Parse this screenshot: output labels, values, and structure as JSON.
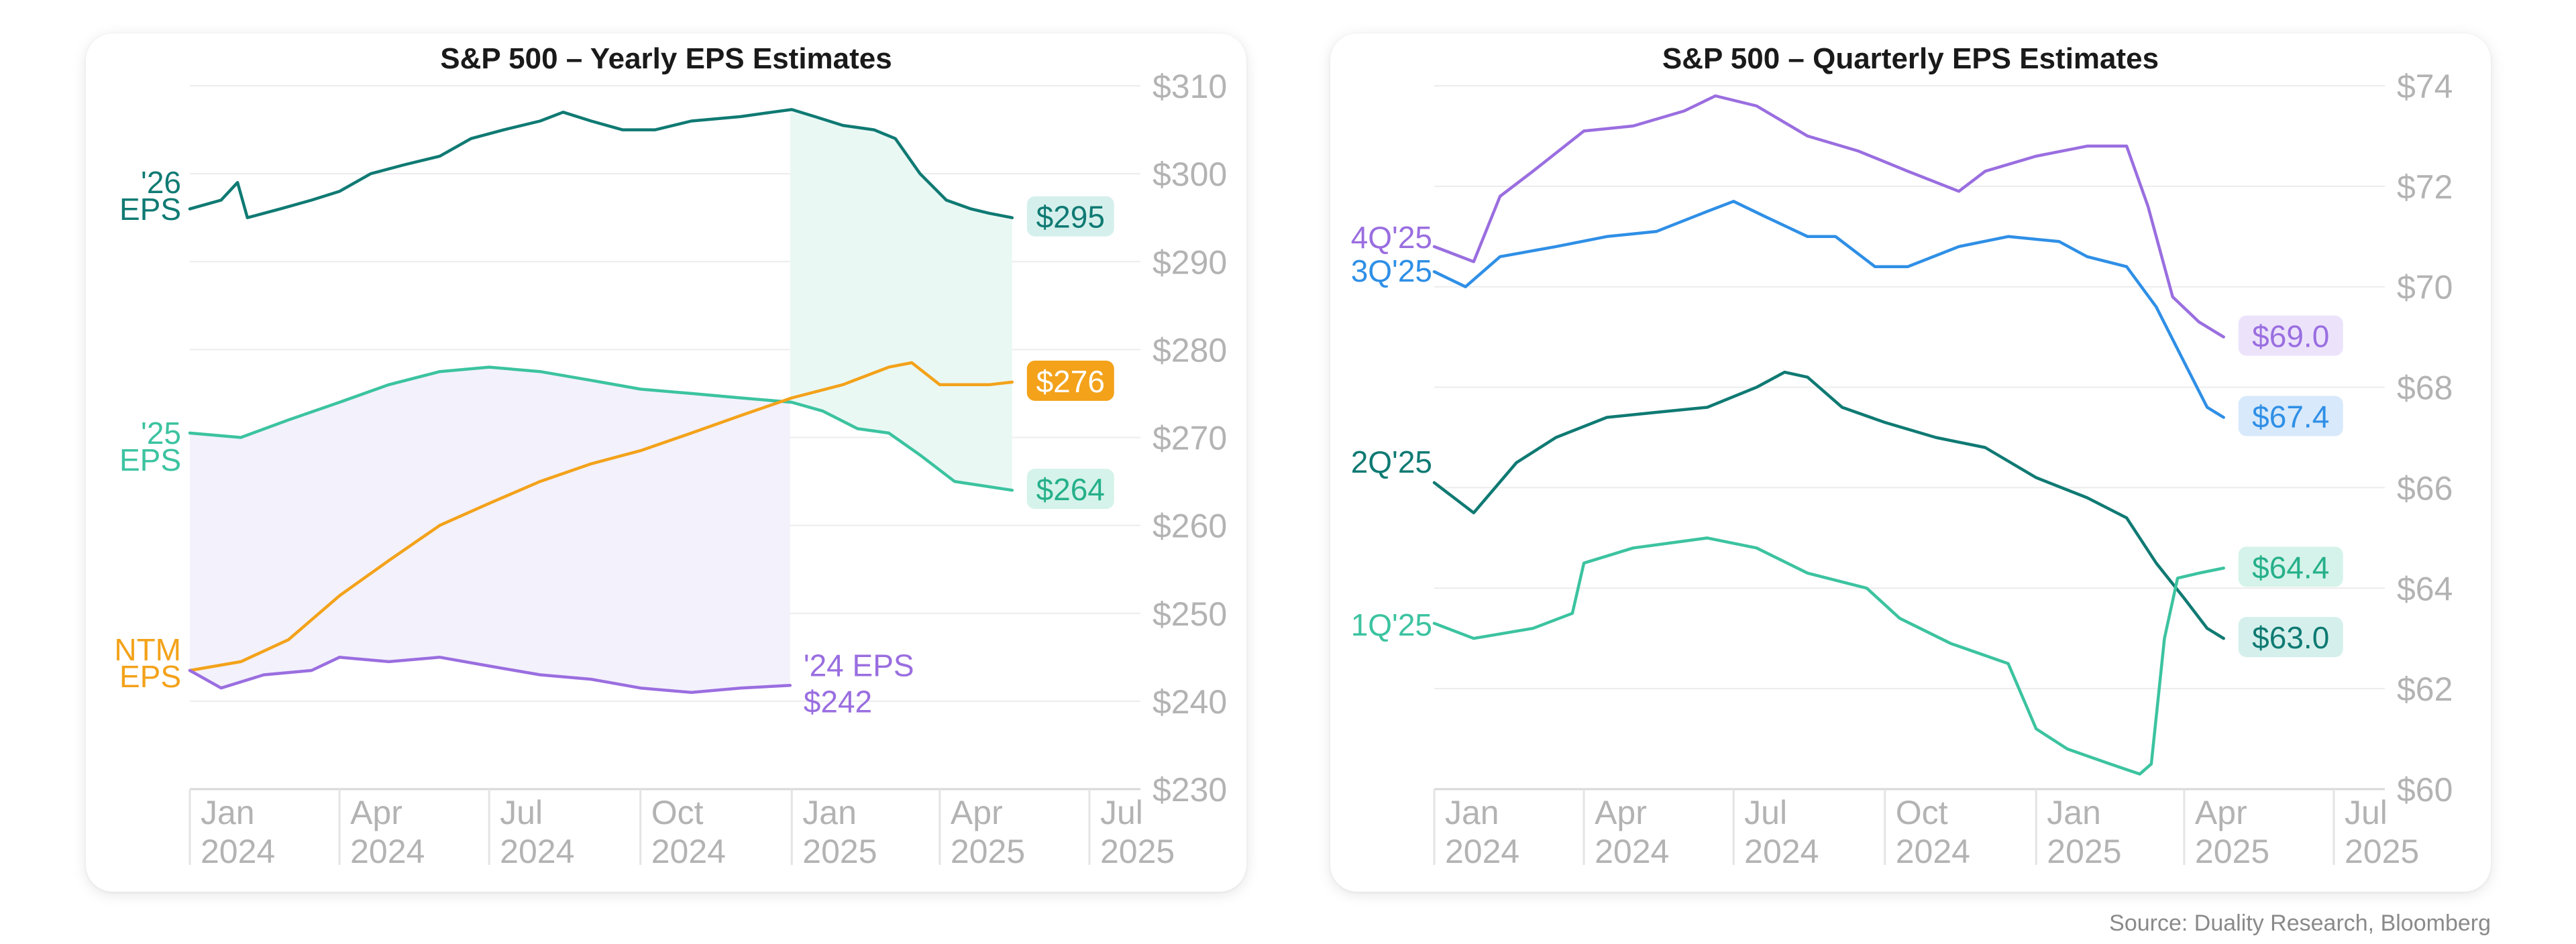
{
  "source": "Source: Duality Research, Bloomberg",
  "chart_data": [
    {
      "type": "line",
      "title": "S&P 500 – Yearly EPS Estimates",
      "ylim": [
        230,
        310
      ],
      "yticks": [
        "$310",
        "$300",
        "$290",
        "$280",
        "$270",
        "$260",
        "$250",
        "$240",
        "$230"
      ],
      "ytick_values": [
        310,
        300,
        290,
        280,
        270,
        260,
        250,
        240,
        230
      ],
      "xlim": [
        "2024-01-01",
        "2025-08-01"
      ],
      "xticks": [
        {
          "date": "2024-01-01",
          "month": "Jan",
          "year": "2024"
        },
        {
          "date": "2024-04-01",
          "month": "Apr",
          "year": "2024"
        },
        {
          "date": "2024-07-01",
          "month": "Jul",
          "year": "2024"
        },
        {
          "date": "2024-10-01",
          "month": "Oct",
          "year": "2024"
        },
        {
          "date": "2025-01-01",
          "month": "Jan",
          "year": "2025"
        },
        {
          "date": "2025-04-01",
          "month": "Apr",
          "year": "2025"
        },
        {
          "date": "2025-07-01",
          "month": "Jul",
          "year": "2025"
        }
      ],
      "grid": true,
      "shaded_regions": [
        {
          "x0": "2024-01-01",
          "x1": "2024-12-31",
          "between": [
            "'24 EPS",
            "'25 EPS"
          ],
          "color": "#f3f1fc"
        },
        {
          "x0": "2024-12-31",
          "x1": "2025-05-15",
          "between": [
            "'26 EPS",
            "'25 EPS"
          ],
          "color": "#eaf8f4"
        }
      ],
      "series": [
        {
          "name": "'26 EPS",
          "label_lines": [
            "'26",
            "EPS"
          ],
          "color": "#0f7a73",
          "end_label": "$295",
          "end_label_bg": "#d5f0ec",
          "end_label_color": "#0f7a73",
          "points": [
            [
              "2024-01-01",
              296
            ],
            [
              "2024-01-20",
              297
            ],
            [
              "2024-01-30",
              299
            ],
            [
              "2024-02-05",
              295
            ],
            [
              "2024-02-25",
              296
            ],
            [
              "2024-03-15",
              297
            ],
            [
              "2024-04-01",
              298
            ],
            [
              "2024-04-20",
              300
            ],
            [
              "2024-05-10",
              301
            ],
            [
              "2024-06-01",
              302
            ],
            [
              "2024-06-20",
              304
            ],
            [
              "2024-07-10",
              305
            ],
            [
              "2024-08-01",
              306
            ],
            [
              "2024-08-15",
              307
            ],
            [
              "2024-09-01",
              306
            ],
            [
              "2024-09-20",
              305
            ],
            [
              "2024-10-10",
              305
            ],
            [
              "2024-11-01",
              306
            ],
            [
              "2024-12-01",
              306.5
            ],
            [
              "2024-12-20",
              307
            ],
            [
              "2025-01-01",
              307.3
            ],
            [
              "2025-01-15",
              306.5
            ],
            [
              "2025-02-01",
              305.5
            ],
            [
              "2025-02-20",
              305
            ],
            [
              "2025-03-05",
              304
            ],
            [
              "2025-03-20",
              300
            ],
            [
              "2025-04-05",
              297
            ],
            [
              "2025-04-20",
              296
            ],
            [
              "2025-05-01",
              295.5
            ],
            [
              "2025-05-15",
              295
            ]
          ]
        },
        {
          "name": "'25 EPS",
          "label_lines": [
            "'25",
            "EPS"
          ],
          "color": "#3cc3a0",
          "end_label": "$264",
          "end_label_bg": "#d5f3ea",
          "end_label_color": "#26b08a",
          "points": [
            [
              "2024-01-01",
              270.5
            ],
            [
              "2024-02-01",
              270
            ],
            [
              "2024-03-01",
              272
            ],
            [
              "2024-04-01",
              274
            ],
            [
              "2024-05-01",
              276
            ],
            [
              "2024-06-01",
              277.5
            ],
            [
              "2024-07-01",
              278
            ],
            [
              "2024-08-01",
              277.5
            ],
            [
              "2024-09-01",
              276.5
            ],
            [
              "2024-10-01",
              275.5
            ],
            [
              "2024-11-01",
              275
            ],
            [
              "2024-12-01",
              274.5
            ],
            [
              "2025-01-01",
              274
            ],
            [
              "2025-01-20",
              273
            ],
            [
              "2025-02-10",
              271
            ],
            [
              "2025-03-01",
              270.5
            ],
            [
              "2025-03-20",
              268
            ],
            [
              "2025-04-10",
              265
            ],
            [
              "2025-05-15",
              264
            ]
          ]
        },
        {
          "name": "NTM EPS",
          "label_lines": [
            "NTM",
            "EPS"
          ],
          "color": "#f3a21a",
          "end_label": "$276",
          "end_label_bg": "#f3a21a",
          "end_label_color": "#ffffff",
          "points": [
            [
              "2024-01-01",
              243.5
            ],
            [
              "2024-02-01",
              244.5
            ],
            [
              "2024-03-01",
              247
            ],
            [
              "2024-04-01",
              252
            ],
            [
              "2024-05-01",
              256
            ],
            [
              "2024-06-01",
              260
            ],
            [
              "2024-07-01",
              262.5
            ],
            [
              "2024-08-01",
              265
            ],
            [
              "2024-09-01",
              267
            ],
            [
              "2024-10-01",
              268.5
            ],
            [
              "2024-11-01",
              270.5
            ],
            [
              "2024-12-01",
              272.5
            ],
            [
              "2025-01-01",
              274.5
            ],
            [
              "2025-02-01",
              276
            ],
            [
              "2025-03-01",
              278
            ],
            [
              "2025-03-15",
              278.5
            ],
            [
              "2025-04-01",
              276
            ],
            [
              "2025-05-01",
              276
            ],
            [
              "2025-05-15",
              276.3
            ]
          ]
        },
        {
          "name": "'24 EPS",
          "label_lines": [
            "NTM",
            "EPS"
          ],
          "color": "#9a6ee0",
          "end_label": "'24 EPS",
          "end_value": "$242",
          "points": [
            [
              "2024-01-01",
              243.5
            ],
            [
              "2024-01-20",
              241.5
            ],
            [
              "2024-02-15",
              243
            ],
            [
              "2024-03-15",
              243.5
            ],
            [
              "2024-04-01",
              245
            ],
            [
              "2024-05-01",
              244.5
            ],
            [
              "2024-06-01",
              245
            ],
            [
              "2024-07-01",
              244
            ],
            [
              "2024-08-01",
              243
            ],
            [
              "2024-09-01",
              242.5
            ],
            [
              "2024-10-01",
              241.5
            ],
            [
              "2024-11-01",
              241
            ],
            [
              "2024-12-01",
              241.5
            ],
            [
              "2024-12-31",
              241.8
            ]
          ]
        }
      ]
    },
    {
      "type": "line",
      "title": "S&P 500 – Quarterly EPS Estimates",
      "ylim": [
        60,
        74
      ],
      "yticks": [
        "$74",
        "$72",
        "$70",
        "$68",
        "$66",
        "$64",
        "$62",
        "$60"
      ],
      "ytick_values": [
        74,
        72,
        70,
        68,
        66,
        64,
        62,
        60
      ],
      "xlim": [
        "2024-01-01",
        "2025-08-01"
      ],
      "xticks": [
        {
          "date": "2024-01-01",
          "month": "Jan",
          "year": "2024"
        },
        {
          "date": "2024-04-01",
          "month": "Apr",
          "year": "2024"
        },
        {
          "date": "2024-07-01",
          "month": "Jul",
          "year": "2024"
        },
        {
          "date": "2024-10-01",
          "month": "Oct",
          "year": "2024"
        },
        {
          "date": "2025-01-01",
          "month": "Jan",
          "year": "2025"
        },
        {
          "date": "2025-04-01",
          "month": "Apr",
          "year": "2025"
        },
        {
          "date": "2025-07-01",
          "month": "Jul",
          "year": "2025"
        }
      ],
      "grid": true,
      "series": [
        {
          "name": "4Q'25",
          "color": "#9a6ee0",
          "end_label": "$69.0",
          "end_label_bg": "#ece3fb",
          "end_label_color": "#9a6ee0",
          "points": [
            [
              "2024-01-01",
              70.8
            ],
            [
              "2024-01-25",
              70.5
            ],
            [
              "2024-02-10",
              71.8
            ],
            [
              "2024-03-01",
              72.3
            ],
            [
              "2024-04-01",
              73.1
            ],
            [
              "2024-05-01",
              73.2
            ],
            [
              "2024-06-01",
              73.5
            ],
            [
              "2024-06-20",
              73.8
            ],
            [
              "2024-07-15",
              73.6
            ],
            [
              "2024-08-15",
              73.0
            ],
            [
              "2024-09-15",
              72.7
            ],
            [
              "2024-10-15",
              72.3
            ],
            [
              "2024-11-15",
              71.9
            ],
            [
              "2024-12-01",
              72.3
            ],
            [
              "2025-01-01",
              72.6
            ],
            [
              "2025-02-01",
              72.8
            ],
            [
              "2025-02-25",
              72.8
            ],
            [
              "2025-03-10",
              71.6
            ],
            [
              "2025-03-25",
              69.8
            ],
            [
              "2025-04-10",
              69.3
            ],
            [
              "2025-04-25",
              69.0
            ]
          ]
        },
        {
          "name": "3Q'25",
          "color": "#2f8fe6",
          "end_label": "$67.4",
          "end_label_bg": "#d7e9fb",
          "end_label_color": "#2f8fe6",
          "points": [
            [
              "2024-01-01",
              70.3
            ],
            [
              "2024-01-20",
              70.0
            ],
            [
              "2024-02-10",
              70.6
            ],
            [
              "2024-03-15",
              70.8
            ],
            [
              "2024-04-15",
              71.0
            ],
            [
              "2024-05-15",
              71.1
            ],
            [
              "2024-06-15",
              71.5
            ],
            [
              "2024-07-01",
              71.7
            ],
            [
              "2024-07-20",
              71.4
            ],
            [
              "2024-08-15",
              71.0
            ],
            [
              "2024-09-01",
              71.0
            ],
            [
              "2024-09-25",
              70.4
            ],
            [
              "2024-10-15",
              70.4
            ],
            [
              "2024-11-15",
              70.8
            ],
            [
              "2024-12-15",
              71.0
            ],
            [
              "2025-01-15",
              70.9
            ],
            [
              "2025-02-01",
              70.6
            ],
            [
              "2025-02-25",
              70.4
            ],
            [
              "2025-03-15",
              69.6
            ],
            [
              "2025-04-01",
              68.5
            ],
            [
              "2025-04-15",
              67.6
            ],
            [
              "2025-04-25",
              67.4
            ]
          ]
        },
        {
          "name": "2Q'25",
          "color": "#0f7a73",
          "end_label": "$63.0",
          "end_label_bg": "#d5f0ec",
          "end_label_color": "#0f7a73",
          "points": [
            [
              "2024-01-01",
              66.1
            ],
            [
              "2024-01-25",
              65.5
            ],
            [
              "2024-02-20",
              66.5
            ],
            [
              "2024-03-15",
              67.0
            ],
            [
              "2024-04-15",
              67.4
            ],
            [
              "2024-05-15",
              67.5
            ],
            [
              "2024-06-15",
              67.6
            ],
            [
              "2024-07-15",
              68.0
            ],
            [
              "2024-08-01",
              68.3
            ],
            [
              "2024-08-15",
              68.2
            ],
            [
              "2024-09-05",
              67.6
            ],
            [
              "2024-10-01",
              67.3
            ],
            [
              "2024-11-01",
              67.0
            ],
            [
              "2024-12-01",
              66.8
            ],
            [
              "2025-01-01",
              66.2
            ],
            [
              "2025-02-01",
              65.8
            ],
            [
              "2025-02-25",
              65.4
            ],
            [
              "2025-03-15",
              64.5
            ],
            [
              "2025-04-01",
              63.8
            ],
            [
              "2025-04-15",
              63.2
            ],
            [
              "2025-04-25",
              63.0
            ]
          ]
        },
        {
          "name": "1Q'25",
          "color": "#3cc3a0",
          "end_label": "$64.4",
          "end_label_bg": "#d5f3ea",
          "end_label_color": "#26b08a",
          "points": [
            [
              "2024-01-01",
              63.3
            ],
            [
              "2024-01-25",
              63.0
            ],
            [
              "2024-03-01",
              63.2
            ],
            [
              "2024-03-25",
              63.5
            ],
            [
              "2024-04-01",
              64.5
            ],
            [
              "2024-05-01",
              64.8
            ],
            [
              "2024-06-15",
              65.0
            ],
            [
              "2024-07-15",
              64.8
            ],
            [
              "2024-08-15",
              64.3
            ],
            [
              "2024-09-20",
              64.0
            ],
            [
              "2024-10-10",
              63.4
            ],
            [
              "2024-11-10",
              62.9
            ],
            [
              "2024-12-15",
              62.5
            ],
            [
              "2025-01-01",
              61.2
            ],
            [
              "2025-01-20",
              60.8
            ],
            [
              "2025-02-15",
              60.5
            ],
            [
              "2025-03-05",
              60.3
            ],
            [
              "2025-03-12",
              60.5
            ],
            [
              "2025-03-20",
              63.0
            ],
            [
              "2025-03-28",
              64.2
            ],
            [
              "2025-04-10",
              64.3
            ],
            [
              "2025-04-25",
              64.4
            ]
          ]
        }
      ],
      "series_label_lines": [
        [
          "4Q'25"
        ],
        [
          "3Q'25"
        ],
        [
          "2Q'25"
        ],
        [
          "1Q'25"
        ]
      ]
    }
  ]
}
